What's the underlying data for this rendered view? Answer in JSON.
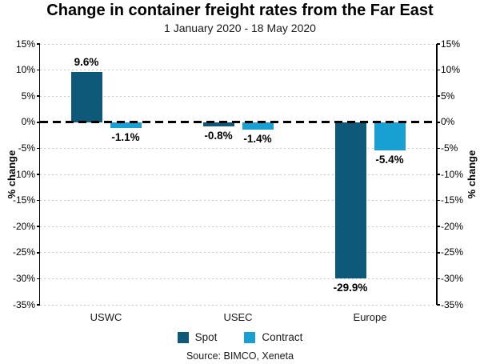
{
  "chart_data": {
    "type": "bar",
    "title": "Change in container freight rates from the Far East",
    "subtitle": "1 January 2020 - 18 May 2020",
    "source": "Source: BIMCO, Xeneta",
    "categories": [
      "USWC",
      "USEC",
      "Europe"
    ],
    "series": [
      {
        "name": "Spot",
        "color": "#0e587a",
        "values": [
          9.6,
          -0.8,
          -29.9
        ],
        "labels": [
          "9.6%",
          "-0.8%",
          "-29.9%"
        ]
      },
      {
        "name": "Contract",
        "color": "#18a0d2",
        "values": [
          -1.1,
          -1.4,
          -5.4
        ],
        "labels": [
          "-1.1%",
          "-1.4%",
          "-5.4%"
        ]
      }
    ],
    "ylabel_left": "% change",
    "ylabel_right": "% change",
    "ylim": [
      -35,
      15
    ],
    "ytick_step": 5,
    "ytick_labels": [
      "15%",
      "10%",
      "5%",
      "0%",
      "-5%",
      "-10%",
      "-15%",
      "-20%",
      "-25%",
      "-30%",
      "-35%"
    ],
    "grid": "dotted-horizontal-both-axes-ticks",
    "zero_line": "black-dashed",
    "legend_position": "bottom",
    "colors": {
      "spot": "#0e587a",
      "contract": "#18a0d2",
      "gridline": "#c9c9c9",
      "text": "#000000"
    }
  }
}
